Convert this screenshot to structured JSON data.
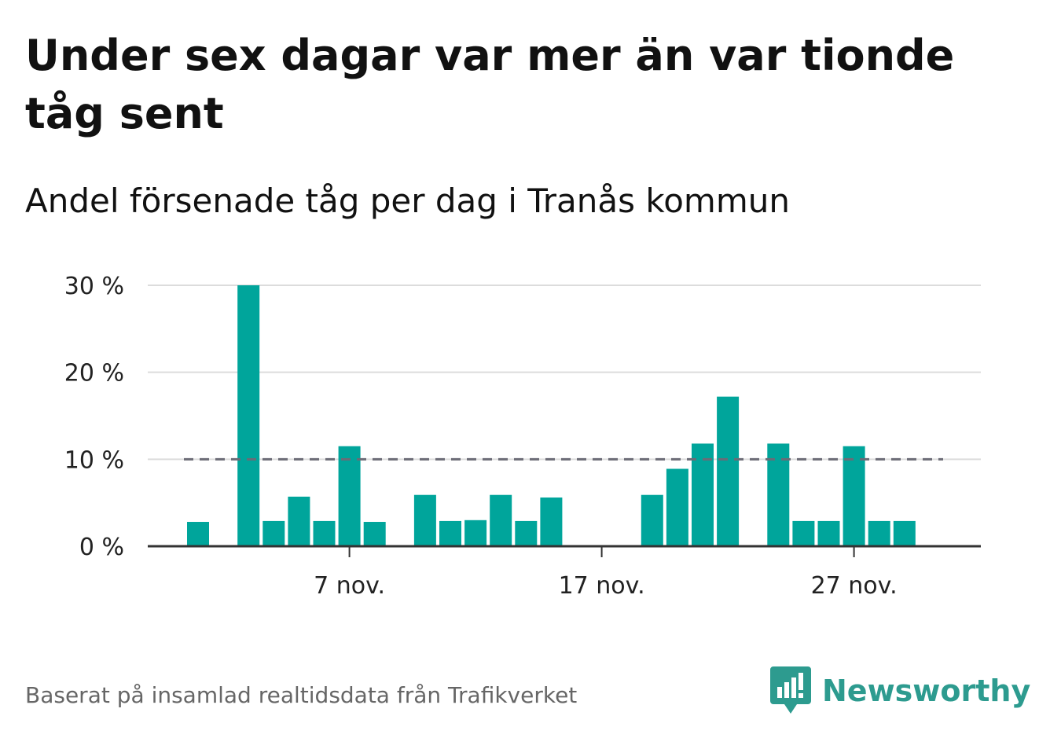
{
  "header": {
    "title": "Under sex dagar var mer än var tionde tåg sent",
    "subtitle": "Andel försenade tåg per dag i Tranås kommun"
  },
  "footer": {
    "source": "Baserat på insamlad realtidsdata från Trafikverket",
    "brand": "Newsworthy",
    "brand_icon": "bar-chart-icon",
    "brand_color": "#2d9b8f"
  },
  "chart_data": {
    "type": "bar",
    "x_start_day": 1,
    "x_end_day": 31,
    "x": [
      1,
      2,
      3,
      4,
      5,
      6,
      7,
      8,
      9,
      10,
      11,
      12,
      13,
      14,
      15,
      16,
      17,
      18,
      19,
      20,
      21,
      22,
      23,
      24,
      25,
      26,
      27,
      28,
      29
    ],
    "values": [
      2.8,
      0,
      30,
      2.9,
      5.7,
      2.9,
      11.5,
      2.8,
      0,
      5.9,
      2.9,
      3.0,
      5.9,
      2.9,
      5.6,
      0,
      0,
      0,
      5.9,
      8.9,
      11.8,
      17.2,
      0,
      11.8,
      2.9,
      2.9,
      11.5,
      2.9,
      2.9
    ],
    "ylim": [
      0,
      30
    ],
    "yticks": [
      0,
      10,
      20,
      30
    ],
    "ytick_labels": [
      "0 %",
      "10 %",
      "20 %",
      "30 %"
    ],
    "xticks": [
      7,
      17,
      27
    ],
    "xtick_labels": [
      "7 nov.",
      "17 nov.",
      "27 nov."
    ],
    "threshold": 10,
    "bar_color": "#00a59b",
    "threshold_color": "#6b6b76",
    "grid": true
  }
}
